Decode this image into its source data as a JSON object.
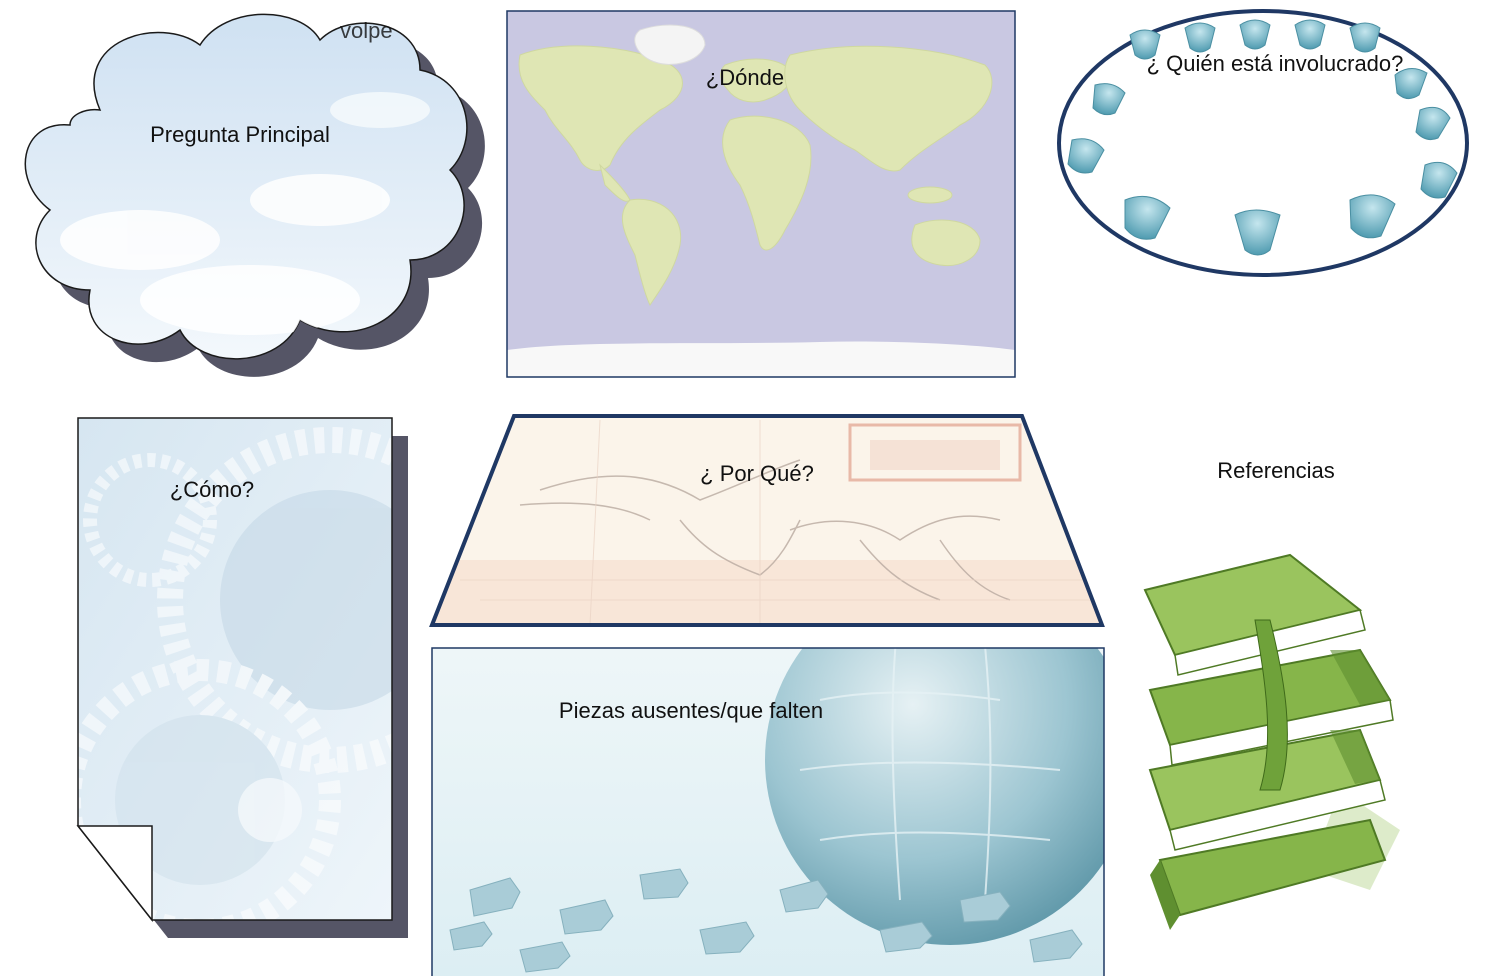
{
  "panels": {
    "main_question": "Pregunta Principal",
    "where": "¿Dónde",
    "who": "¿ Quién está involucrado?",
    "how": "¿Cómo?",
    "why": "¿ Por Qué?",
    "references": "Referencias",
    "missing_pieces": "Piezas ausentes/que falten"
  },
  "watermark": "volpe",
  "colors": {
    "border_dark": "#1f3864",
    "ocean": "#c9c8e2",
    "land": "#dfe6b4",
    "sky": "#dbe9f6",
    "chair": "#6fb7c8",
    "books_green": "#86b54a",
    "shadow": "#555566"
  },
  "icons": [
    "cloud-shape",
    "world-map",
    "chairs-circle",
    "gears-page",
    "birds-sketch",
    "puzzle-globe",
    "books-stack"
  ]
}
